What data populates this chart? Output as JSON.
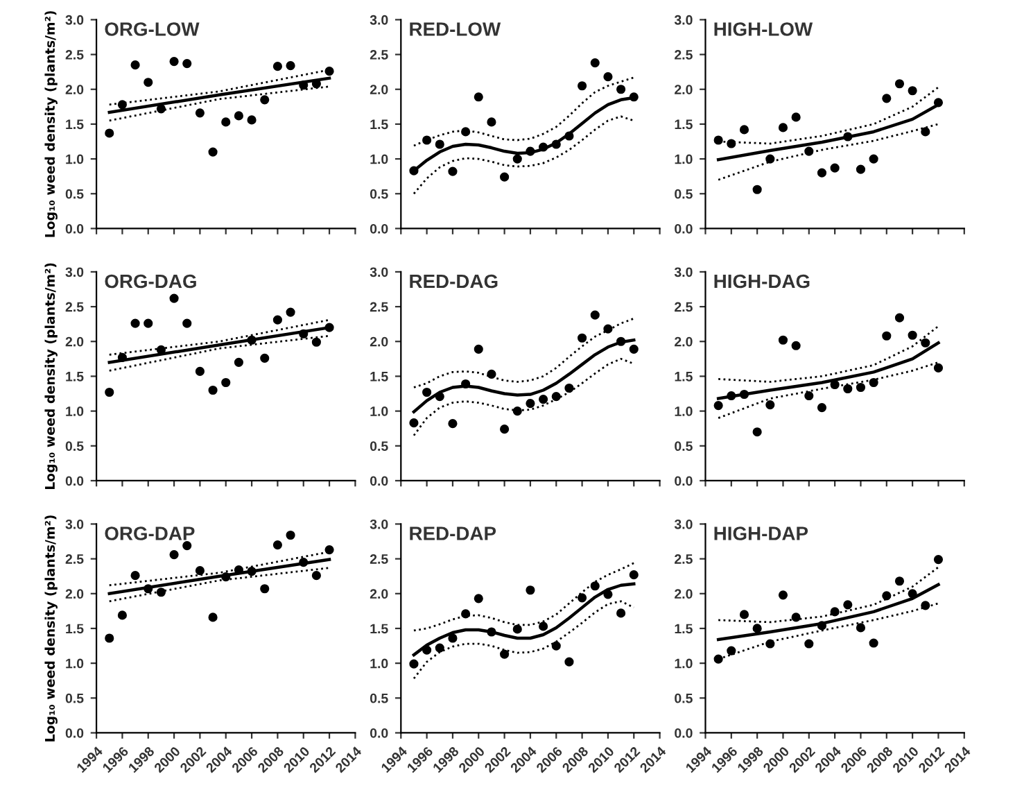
{
  "chart_data": [
    {
      "type": "scatter",
      "title": "ORG-LOW",
      "ylabel": "Log₁₀ weed density (plants/m²)",
      "tick_labels": "y",
      "xlim": [
        1994,
        2014
      ],
      "xticks": [
        1994,
        1996,
        1998,
        2000,
        2002,
        2004,
        2006,
        2008,
        2010,
        2012,
        2014
      ],
      "ylim": [
        0,
        3
      ],
      "yticks": [
        {
          "value": 0,
          "label": "0.0"
        },
        {
          "value": 0.5,
          "label": "0.5"
        },
        {
          "value": 1,
          "label": "1.0"
        },
        {
          "value": 1.5,
          "label": "1.5"
        },
        {
          "value": 2,
          "label": "2.0"
        },
        {
          "value": 2.5,
          "label": "2.5"
        },
        {
          "value": 3,
          "label": "3.0"
        }
      ],
      "x": [
        1995,
        1996,
        1997,
        1998,
        1999,
        2000,
        2001,
        2002,
        2003,
        2004,
        2005,
        2006,
        2007,
        2008,
        2009,
        2010,
        2011,
        2012
      ],
      "series": [
        {
          "type": "scatter",
          "marker": "circle",
          "color": "#000000",
          "values": [
            1.37,
            1.78,
            2.35,
            2.1,
            1.72,
            2.4,
            2.37,
            1.66,
            1.1,
            1.53,
            1.62,
            1.56,
            1.85,
            2.33,
            2.34,
            2.06,
            2.08,
            2.26
          ]
        },
        {
          "type": "line",
          "color": "#000000",
          "line_style": "solid",
          "x": [
            1995,
            2003.5,
            2012
          ],
          "values": [
            1.67,
            1.92,
            2.16
          ]
        },
        {
          "type": "line",
          "color": "#000000",
          "line_style": "dotted",
          "x": [
            1995,
            2003.5,
            2012
          ],
          "values": [
            1.78,
            1.97,
            2.28
          ]
        },
        {
          "type": "line",
          "color": "#000000",
          "line_style": "dotted",
          "x": [
            1995,
            2003.5,
            2012
          ],
          "values": [
            1.55,
            1.86,
            2.04
          ]
        }
      ]
    },
    {
      "type": "scatter",
      "title": "RED-LOW",
      "tick_labels": "y",
      "xlim": [
        1994,
        2014
      ],
      "xticks": [
        1994,
        1996,
        1998,
        2000,
        2002,
        2004,
        2006,
        2008,
        2010,
        2012,
        2014
      ],
      "ylim": [
        0,
        3
      ],
      "yticks": [
        {
          "value": 0,
          "label": "0.0"
        },
        {
          "value": 0.5,
          "label": "0.5"
        },
        {
          "value": 1,
          "label": "1.0"
        },
        {
          "value": 1.5,
          "label": "1.5"
        },
        {
          "value": 2,
          "label": "2.0"
        },
        {
          "value": 2.5,
          "label": "2.5"
        },
        {
          "value": 3,
          "label": "3.0"
        }
      ],
      "x": [
        1995,
        1996,
        1997,
        1998,
        1999,
        2000,
        2001,
        2002,
        2003,
        2004,
        2005,
        2006,
        2007,
        2008,
        2009,
        2010,
        2011,
        2012
      ],
      "series": [
        {
          "type": "scatter",
          "marker": "circle",
          "color": "#000000",
          "values": [
            0.83,
            1.27,
            1.21,
            0.82,
            1.39,
            1.89,
            1.53,
            0.74,
            1.0,
            1.11,
            1.17,
            1.21,
            1.33,
            2.05,
            2.38,
            2.18,
            2.0,
            1.89
          ]
        },
        {
          "type": "line",
          "color": "#000000",
          "line_style": "solid",
          "values": [
            0.83,
            0.98,
            1.1,
            1.18,
            1.21,
            1.2,
            1.16,
            1.11,
            1.08,
            1.09,
            1.14,
            1.23,
            1.36,
            1.51,
            1.66,
            1.78,
            1.85,
            1.88
          ]
        },
        {
          "type": "line",
          "color": "#000000",
          "line_style": "dotted",
          "values": [
            1.19,
            1.27,
            1.34,
            1.39,
            1.41,
            1.38,
            1.33,
            1.28,
            1.27,
            1.29,
            1.36,
            1.46,
            1.62,
            1.8,
            1.96,
            2.05,
            2.11,
            2.17
          ]
        },
        {
          "type": "line",
          "color": "#000000",
          "line_style": "dotted",
          "values": [
            0.5,
            0.72,
            0.88,
            0.97,
            1.01,
            1.0,
            0.96,
            0.91,
            0.89,
            0.9,
            0.94,
            1.02,
            1.13,
            1.27,
            1.42,
            1.55,
            1.61,
            1.55
          ]
        }
      ]
    },
    {
      "type": "scatter",
      "title": "HIGH-LOW",
      "tick_labels": "y",
      "xlim": [
        1994,
        2014
      ],
      "xticks": [
        1994,
        1996,
        1998,
        2000,
        2002,
        2004,
        2006,
        2008,
        2010,
        2012,
        2014
      ],
      "ylim": [
        0,
        3
      ],
      "yticks": [
        {
          "value": 0,
          "label": "0.0"
        },
        {
          "value": 0.5,
          "label": "0.5"
        },
        {
          "value": 1,
          "label": "1.0"
        },
        {
          "value": 1.5,
          "label": "1.5"
        },
        {
          "value": 2,
          "label": "2.0"
        },
        {
          "value": 2.5,
          "label": "2.5"
        },
        {
          "value": 3,
          "label": "3.0"
        }
      ],
      "x": [
        1995,
        1996,
        1997,
        1998,
        1999,
        2000,
        2001,
        2002,
        2003,
        2004,
        2005,
        2006,
        2007,
        2008,
        2009,
        2010,
        2011,
        2012
      ],
      "series": [
        {
          "type": "scatter",
          "marker": "circle",
          "color": "#000000",
          "values": [
            1.27,
            1.22,
            1.42,
            0.56,
            1.0,
            1.45,
            1.6,
            1.11,
            0.8,
            0.87,
            1.32,
            0.85,
            1.0,
            1.87,
            2.08,
            1.98,
            1.39,
            1.81
          ]
        },
        {
          "type": "line",
          "color": "#000000",
          "line_style": "solid",
          "x": [
            1995,
            1999,
            2003,
            2007,
            2010,
            2012
          ],
          "values": [
            0.99,
            1.12,
            1.24,
            1.39,
            1.57,
            1.78
          ]
        },
        {
          "type": "line",
          "color": "#000000",
          "line_style": "dotted",
          "x": [
            1995,
            1999,
            2003,
            2007,
            2010,
            2012
          ],
          "values": [
            1.25,
            1.22,
            1.33,
            1.5,
            1.75,
            2.03
          ]
        },
        {
          "type": "line",
          "color": "#000000",
          "line_style": "dotted",
          "x": [
            1995,
            1999,
            2003,
            2007,
            2010,
            2012
          ],
          "values": [
            0.7,
            0.96,
            1.13,
            1.26,
            1.4,
            1.5
          ]
        }
      ]
    },
    {
      "type": "scatter",
      "title": "ORG-DAG",
      "ylabel": "Log₁₀ weed density (plants/m²)",
      "tick_labels": "y",
      "xlim": [
        1994,
        2014
      ],
      "xticks": [
        1994,
        1996,
        1998,
        2000,
        2002,
        2004,
        2006,
        2008,
        2010,
        2012,
        2014
      ],
      "ylim": [
        0,
        3
      ],
      "yticks": [
        {
          "value": 0,
          "label": "0.0"
        },
        {
          "value": 0.5,
          "label": "0.5"
        },
        {
          "value": 1,
          "label": "1.0"
        },
        {
          "value": 1.5,
          "label": "1.5"
        },
        {
          "value": 2,
          "label": "2.0"
        },
        {
          "value": 2.5,
          "label": "2.5"
        },
        {
          "value": 3,
          "label": "3.0"
        }
      ],
      "x": [
        1995,
        1996,
        1997,
        1998,
        1999,
        2000,
        2001,
        2002,
        2003,
        2004,
        2005,
        2006,
        2007,
        2008,
        2009,
        2010,
        2011,
        2012
      ],
      "series": [
        {
          "type": "scatter",
          "marker": "circle",
          "color": "#000000",
          "values": [
            1.27,
            1.77,
            2.26,
            2.26,
            1.88,
            2.62,
            2.26,
            1.57,
            1.3,
            1.41,
            1.7,
            2.02,
            1.76,
            2.31,
            2.42,
            2.11,
            1.99,
            2.2
          ]
        },
        {
          "type": "line",
          "color": "#000000",
          "line_style": "solid",
          "x": [
            1995,
            2003.5,
            2012
          ],
          "values": [
            1.7,
            1.95,
            2.2
          ]
        },
        {
          "type": "line",
          "color": "#000000",
          "line_style": "dotted",
          "x": [
            1995,
            2003.5,
            2012
          ],
          "values": [
            1.81,
            2.0,
            2.31
          ]
        },
        {
          "type": "line",
          "color": "#000000",
          "line_style": "dotted",
          "x": [
            1995,
            2003.5,
            2012
          ],
          "values": [
            1.58,
            1.9,
            2.08
          ]
        }
      ]
    },
    {
      "type": "scatter",
      "title": "RED-DAG",
      "tick_labels": "y",
      "xlim": [
        1994,
        2014
      ],
      "xticks": [
        1994,
        1996,
        1998,
        2000,
        2002,
        2004,
        2006,
        2008,
        2010,
        2012,
        2014
      ],
      "ylim": [
        0,
        3
      ],
      "yticks": [
        {
          "value": 0,
          "label": "0.0"
        },
        {
          "value": 0.5,
          "label": "0.5"
        },
        {
          "value": 1,
          "label": "1.0"
        },
        {
          "value": 1.5,
          "label": "1.5"
        },
        {
          "value": 2,
          "label": "2.0"
        },
        {
          "value": 2.5,
          "label": "2.5"
        },
        {
          "value": 3,
          "label": "3.0"
        }
      ],
      "x": [
        1995,
        1996,
        1997,
        1998,
        1999,
        2000,
        2001,
        2002,
        2003,
        2004,
        2005,
        2006,
        2007,
        2008,
        2009,
        2010,
        2011,
        2012
      ],
      "series": [
        {
          "type": "scatter",
          "marker": "circle",
          "color": "#000000",
          "values": [
            0.83,
            1.27,
            1.21,
            0.82,
            1.39,
            1.89,
            1.53,
            0.74,
            1.0,
            1.11,
            1.17,
            1.21,
            1.33,
            2.05,
            2.38,
            2.18,
            2.0,
            1.89
          ]
        },
        {
          "type": "line",
          "color": "#000000",
          "line_style": "solid",
          "values": [
            0.99,
            1.15,
            1.27,
            1.34,
            1.36,
            1.34,
            1.29,
            1.25,
            1.23,
            1.24,
            1.3,
            1.4,
            1.53,
            1.67,
            1.81,
            1.92,
            1.99,
            2.02
          ]
        },
        {
          "type": "line",
          "color": "#000000",
          "line_style": "dotted",
          "values": [
            1.34,
            1.4,
            1.5,
            1.56,
            1.57,
            1.55,
            1.49,
            1.44,
            1.42,
            1.44,
            1.5,
            1.62,
            1.78,
            1.93,
            2.07,
            2.16,
            2.26,
            2.33
          ]
        },
        {
          "type": "line",
          "color": "#000000",
          "line_style": "dotted",
          "values": [
            0.65,
            0.9,
            1.05,
            1.12,
            1.14,
            1.12,
            1.08,
            1.03,
            1.01,
            1.02,
            1.08,
            1.17,
            1.27,
            1.4,
            1.54,
            1.67,
            1.75,
            1.68
          ]
        }
      ]
    },
    {
      "type": "scatter",
      "title": "HIGH-DAG",
      "tick_labels": "y",
      "xlim": [
        1994,
        2014
      ],
      "xticks": [
        1994,
        1996,
        1998,
        2000,
        2002,
        2004,
        2006,
        2008,
        2010,
        2012,
        2014
      ],
      "ylim": [
        0,
        3
      ],
      "yticks": [
        {
          "value": 0,
          "label": "0.0"
        },
        {
          "value": 0.5,
          "label": "0.5"
        },
        {
          "value": 1,
          "label": "1.0"
        },
        {
          "value": 1.5,
          "label": "1.5"
        },
        {
          "value": 2,
          "label": "2.0"
        },
        {
          "value": 2.5,
          "label": "2.5"
        },
        {
          "value": 3,
          "label": "3.0"
        }
      ],
      "x": [
        1995,
        1996,
        1997,
        1998,
        1999,
        2000,
        2001,
        2002,
        2003,
        2004,
        2005,
        2006,
        2007,
        2008,
        2009,
        2010,
        2011,
        2012
      ],
      "series": [
        {
          "type": "scatter",
          "marker": "circle",
          "color": "#000000",
          "values": [
            1.08,
            1.22,
            1.24,
            0.7,
            1.09,
            2.02,
            1.94,
            1.22,
            1.05,
            1.38,
            1.32,
            1.34,
            1.41,
            2.08,
            2.34,
            2.09,
            1.98,
            1.62
          ]
        },
        {
          "type": "line",
          "color": "#000000",
          "line_style": "solid",
          "x": [
            1995,
            1999,
            2003,
            2007,
            2010,
            2012
          ],
          "values": [
            1.18,
            1.3,
            1.41,
            1.56,
            1.75,
            1.98
          ]
        },
        {
          "type": "line",
          "color": "#000000",
          "line_style": "dotted",
          "x": [
            1995,
            1999,
            2003,
            2007,
            2010,
            2012
          ],
          "values": [
            1.46,
            1.42,
            1.5,
            1.66,
            1.93,
            2.22
          ]
        },
        {
          "type": "line",
          "color": "#000000",
          "line_style": "dotted",
          "x": [
            1995,
            1999,
            2003,
            2007,
            2010,
            2012
          ],
          "values": [
            0.9,
            1.18,
            1.32,
            1.45,
            1.58,
            1.7
          ]
        }
      ]
    },
    {
      "type": "scatter",
      "title": "ORG-DAP",
      "ylabel": "Log₁₀ weed density (plants/m²)",
      "xlim": [
        1994,
        2014
      ],
      "xticks": [
        1994,
        1996,
        1998,
        2000,
        2002,
        2004,
        2006,
        2008,
        2010,
        2012,
        2014
      ],
      "ylim": [
        0,
        3
      ],
      "yticks": [
        {
          "value": 0,
          "label": "0.0"
        },
        {
          "value": 0.5,
          "label": "0.5"
        },
        {
          "value": 1,
          "label": "1.0"
        },
        {
          "value": 1.5,
          "label": "1.5"
        },
        {
          "value": 2,
          "label": "2.0"
        },
        {
          "value": 2.5,
          "label": "2.5"
        },
        {
          "value": 3,
          "label": "3.0"
        }
      ],
      "x": [
        1995,
        1996,
        1997,
        1998,
        1999,
        2000,
        2001,
        2002,
        2003,
        2004,
        2005,
        2006,
        2007,
        2008,
        2009,
        2010,
        2011,
        2012
      ],
      "series": [
        {
          "type": "scatter",
          "marker": "circle",
          "color": "#000000",
          "values": [
            1.36,
            1.69,
            2.26,
            2.07,
            2.02,
            2.56,
            2.69,
            2.33,
            1.66,
            2.24,
            2.34,
            2.32,
            2.07,
            2.7,
            2.84,
            2.45,
            2.26,
            2.63
          ]
        },
        {
          "type": "line",
          "color": "#000000",
          "line_style": "solid",
          "x": [
            1995,
            2003.5,
            2012
          ],
          "values": [
            2.0,
            2.25,
            2.49
          ]
        },
        {
          "type": "line",
          "color": "#000000",
          "line_style": "dotted",
          "x": [
            1995,
            2003.5,
            2012
          ],
          "values": [
            2.12,
            2.3,
            2.6
          ]
        },
        {
          "type": "line",
          "color": "#000000",
          "line_style": "dotted",
          "x": [
            1995,
            2003.5,
            2012
          ],
          "values": [
            1.89,
            2.19,
            2.37
          ]
        }
      ]
    },
    {
      "type": "scatter",
      "title": "RED-DAP",
      "xlim": [
        1994,
        2014
      ],
      "xticks": [
        1994,
        1996,
        1998,
        2000,
        2002,
        2004,
        2006,
        2008,
        2010,
        2012,
        2014
      ],
      "ylim": [
        0,
        3
      ],
      "yticks": [
        {
          "value": 0,
          "label": "0.0"
        },
        {
          "value": 0.5,
          "label": "0.5"
        },
        {
          "value": 1,
          "label": "1.0"
        },
        {
          "value": 1.5,
          "label": "1.5"
        },
        {
          "value": 2,
          "label": "2.0"
        },
        {
          "value": 2.5,
          "label": "2.5"
        },
        {
          "value": 3,
          "label": "3.0"
        }
      ],
      "x": [
        1995,
        1996,
        1997,
        1998,
        1999,
        2000,
        2001,
        2002,
        2003,
        2004,
        2005,
        2006,
        2007,
        2008,
        2009,
        2010,
        2011,
        2012
      ],
      "series": [
        {
          "type": "scatter",
          "marker": "circle",
          "color": "#000000",
          "values": [
            0.99,
            1.19,
            1.22,
            1.36,
            1.71,
            1.93,
            1.45,
            1.13,
            1.49,
            2.05,
            1.53,
            1.25,
            1.02,
            1.94,
            2.11,
            1.99,
            1.72,
            2.27
          ]
        },
        {
          "type": "line",
          "color": "#000000",
          "line_style": "solid",
          "values": [
            1.12,
            1.26,
            1.36,
            1.44,
            1.48,
            1.48,
            1.45,
            1.4,
            1.36,
            1.36,
            1.41,
            1.51,
            1.65,
            1.8,
            1.95,
            2.06,
            2.12,
            2.14
          ]
        },
        {
          "type": "line",
          "color": "#000000",
          "line_style": "dotted",
          "values": [
            1.47,
            1.5,
            1.56,
            1.63,
            1.68,
            1.69,
            1.65,
            1.59,
            1.55,
            1.55,
            1.6,
            1.7,
            1.86,
            2.02,
            2.17,
            2.27,
            2.35,
            2.44
          ]
        },
        {
          "type": "line",
          "color": "#000000",
          "line_style": "dotted",
          "values": [
            0.78,
            1.02,
            1.16,
            1.24,
            1.28,
            1.28,
            1.25,
            1.19,
            1.15,
            1.16,
            1.21,
            1.31,
            1.44,
            1.58,
            1.73,
            1.85,
            1.89,
            1.8
          ]
        }
      ]
    },
    {
      "type": "scatter",
      "title": "HIGH-DAP",
      "xlim": [
        1994,
        2014
      ],
      "xticks": [
        1994,
        1996,
        1998,
        2000,
        2002,
        2004,
        2006,
        2008,
        2010,
        2012,
        2014
      ],
      "ylim": [
        0,
        3
      ],
      "yticks": [
        {
          "value": 0,
          "label": "0.0"
        },
        {
          "value": 0.5,
          "label": "0.5"
        },
        {
          "value": 1,
          "label": "1.0"
        },
        {
          "value": 1.5,
          "label": "1.5"
        },
        {
          "value": 2,
          "label": "2.0"
        },
        {
          "value": 2.5,
          "label": "2.5"
        },
        {
          "value": 3,
          "label": "3.0"
        }
      ],
      "x": [
        1995,
        1996,
        1997,
        1998,
        1999,
        2000,
        2001,
        2002,
        2003,
        2004,
        2005,
        2006,
        2007,
        2008,
        2009,
        2010,
        2011,
        2012
      ],
      "series": [
        {
          "type": "scatter",
          "marker": "circle",
          "color": "#000000",
          "values": [
            1.06,
            1.18,
            1.7,
            1.5,
            1.28,
            1.98,
            1.66,
            1.28,
            1.54,
            1.74,
            1.84,
            1.51,
            1.29,
            1.97,
            2.18,
            2.0,
            1.83,
            2.49
          ]
        },
        {
          "type": "line",
          "color": "#000000",
          "line_style": "solid",
          "x": [
            1995,
            1999,
            2003,
            2007,
            2010,
            2012
          ],
          "values": [
            1.34,
            1.45,
            1.57,
            1.74,
            1.93,
            2.13
          ]
        },
        {
          "type": "line",
          "color": "#000000",
          "line_style": "dotted",
          "x": [
            1995,
            1999,
            2003,
            2007,
            2010,
            2012
          ],
          "values": [
            1.62,
            1.59,
            1.67,
            1.84,
            2.1,
            2.38
          ]
        },
        {
          "type": "line",
          "color": "#000000",
          "line_style": "dotted",
          "x": [
            1995,
            1999,
            2003,
            2007,
            2010,
            2012
          ],
          "values": [
            1.06,
            1.31,
            1.47,
            1.62,
            1.75,
            1.86
          ]
        }
      ]
    }
  ]
}
